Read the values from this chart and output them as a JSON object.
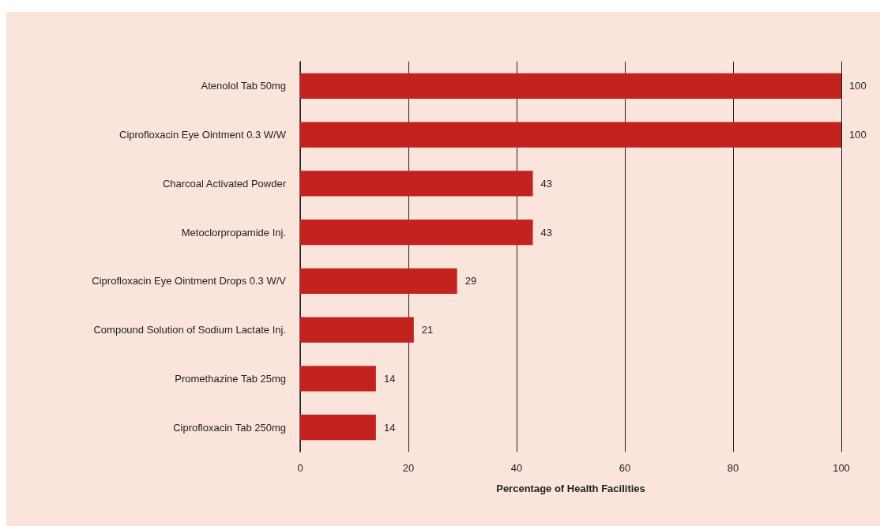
{
  "chart_data": {
    "type": "bar",
    "orientation": "horizontal",
    "xlabel": "Percentage of Health Facilities",
    "categories": [
      "Atenolol Tab 50mg",
      "Ciprofloxacin Eye Ointment 0.3 W/W",
      "Charcoal Activated Powder",
      "Metoclorpropamide Inj.",
      "Ciprofloxacin Eye Ointment Drops 0.3 W/V",
      "Compound Solution of Sodium Lactate Inj.",
      "Promethazine Tab 25mg",
      "Ciprofloxacin Tab 250mg"
    ],
    "values": [
      100,
      100,
      43,
      43,
      29,
      21,
      14,
      14
    ],
    "color": "#c3231f",
    "xlim": [
      0,
      100
    ],
    "xticks": [
      0,
      20,
      40,
      60,
      80,
      100
    ],
    "grid": "x",
    "data_labels": true
  }
}
